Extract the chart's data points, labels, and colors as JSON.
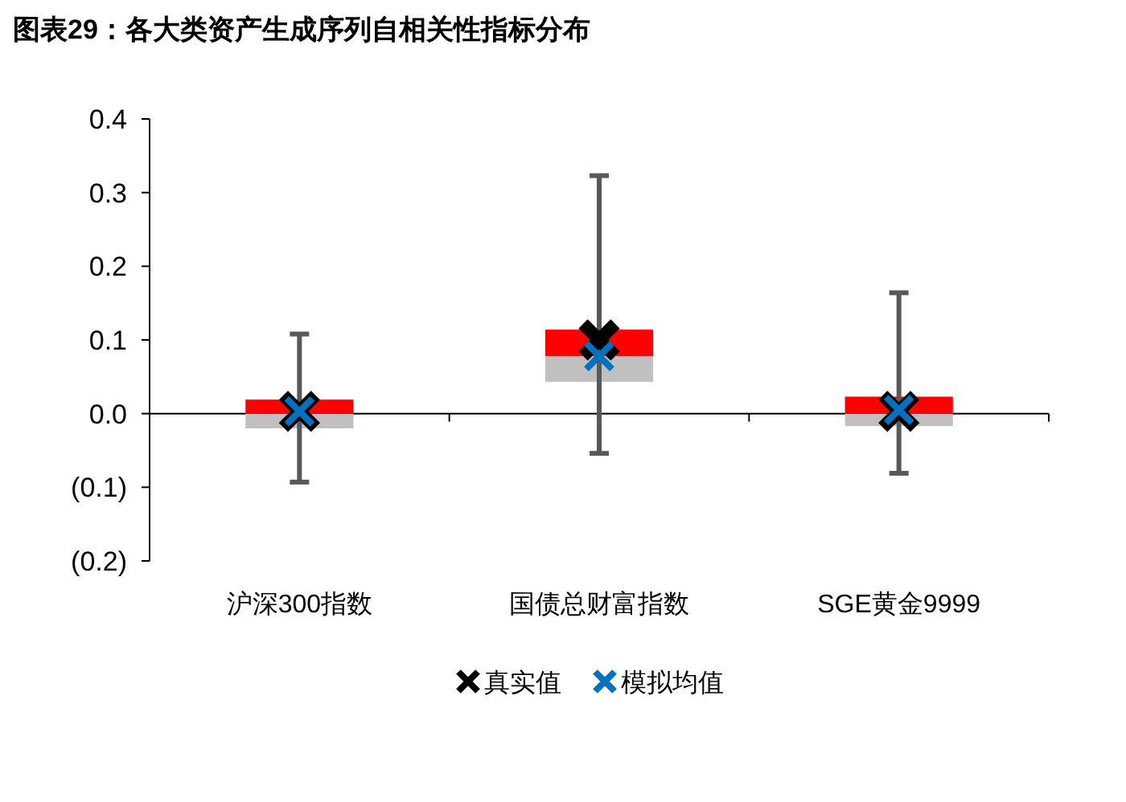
{
  "chart_data": {
    "type": "box",
    "title": "图表29：各大类资产生成序列自相关性指标分布",
    "categories": [
      "沪深300指数",
      "国债总财富指数",
      "SGE黄金9999"
    ],
    "boxes": [
      {
        "low": -0.093,
        "q1": -0.02,
        "median": 0.0,
        "q3": 0.019,
        "high": 0.108
      },
      {
        "low": -0.054,
        "q1": 0.043,
        "median": 0.078,
        "q3": 0.114,
        "high": 0.323
      },
      {
        "low": -0.081,
        "q1": -0.017,
        "median": 0.0,
        "q3": 0.023,
        "high": 0.164
      }
    ],
    "series": [
      {
        "name": "真实值",
        "type": "scatter",
        "marker": "cross",
        "color": "#000000",
        "x": [
          "沪深300指数",
          "国债总财富指数",
          "SGE黄金9999"
        ],
        "values": [
          0.003,
          0.1,
          0.003
        ]
      },
      {
        "name": "模拟均值",
        "type": "scatter",
        "marker": "cross",
        "color": "#0070c0",
        "x": [
          "沪深300指数",
          "国债总财富指数",
          "SGE黄金9999"
        ],
        "values": [
          0.003,
          0.078,
          0.005
        ]
      }
    ],
    "ylim": [
      -0.2,
      0.4
    ],
    "yticks": [
      0.4,
      0.3,
      0.2,
      0.1,
      {
        "value": 0,
        "label": "0.0"
      },
      {
        "value": -0.1,
        "label": "(0.1)"
      },
      {
        "value": -0.2,
        "label": "(0.2)"
      }
    ],
    "legend": "bottom"
  }
}
